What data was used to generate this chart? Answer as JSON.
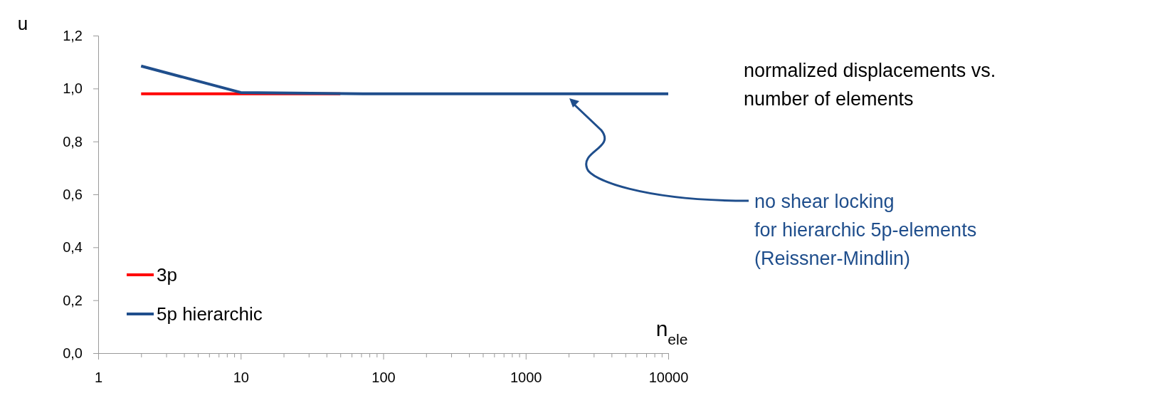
{
  "chart_data": {
    "type": "line",
    "title": "normalized displacements vs. number of elements",
    "xlabel": "n$_{ele}$",
    "ylabel": "u",
    "log": "x",
    "xlim": [
      1,
      10000
    ],
    "xticks": [
      1,
      {
        "value": 2,
        "label": null
      },
      {
        "value": 3,
        "label": null
      },
      {
        "value": 4,
        "label": null
      },
      {
        "value": 5,
        "label": null
      },
      {
        "value": 6,
        "label": null
      },
      {
        "value": 7,
        "label": null
      },
      {
        "value": 8,
        "label": null
      },
      {
        "value": 9,
        "label": null
      },
      10,
      {
        "value": 20,
        "label": null
      },
      {
        "value": 30,
        "label": null
      },
      {
        "value": 40,
        "label": null
      },
      {
        "value": 50,
        "label": null
      },
      {
        "value": 60,
        "label": null
      },
      {
        "value": 70,
        "label": null
      },
      {
        "value": 80,
        "label": null
      },
      {
        "value": 90,
        "label": null
      },
      100,
      {
        "value": 200,
        "label": null
      },
      {
        "value": 300,
        "label": null
      },
      {
        "value": 400,
        "label": null
      },
      {
        "value": 500,
        "label": null
      },
      {
        "value": 600,
        "label": null
      },
      {
        "value": 700,
        "label": null
      },
      {
        "value": 800,
        "label": null
      },
      {
        "value": 900,
        "label": null
      },
      1000,
      {
        "value": 2000,
        "label": null
      },
      {
        "value": 3000,
        "label": null
      },
      {
        "value": 4000,
        "label": null
      },
      {
        "value": 5000,
        "label": null
      },
      {
        "value": 6000,
        "label": null
      },
      {
        "value": 7000,
        "label": null
      },
      {
        "value": 8000,
        "label": null
      },
      {
        "value": 9000,
        "label": null
      },
      10000
    ],
    "ylim": [
      0,
      1.2
    ],
    "yticks": [
      {
        "value": 0,
        "label": "0,0"
      },
      {
        "value": 0.2,
        "label": "0,2"
      },
      {
        "value": 0.4,
        "label": "0,4"
      },
      {
        "value": 0.6,
        "label": "0,6"
      },
      {
        "value": 0.8,
        "label": "0,8"
      },
      {
        "value": 1.0,
        "label": "1,0"
      },
      {
        "value": 1.2,
        "label": "1,2"
      }
    ],
    "legend": "bottom left",
    "annotations": [
      "no shear locking\nfor hierarchic 5p-elements\n(Reissner-Mindlin)"
    ],
    "series": [
      {
        "name": "3p",
        "color": "#ff0000",
        "x": [
          2,
          10,
          50
        ],
        "values": [
          0.98,
          0.98,
          0.98
        ]
      },
      {
        "name": "5p hierarchic",
        "color": "#1f4e8c",
        "x": [
          2,
          10,
          80,
          10000
        ],
        "values": [
          1.085,
          0.985,
          0.98,
          0.98
        ]
      }
    ]
  }
}
